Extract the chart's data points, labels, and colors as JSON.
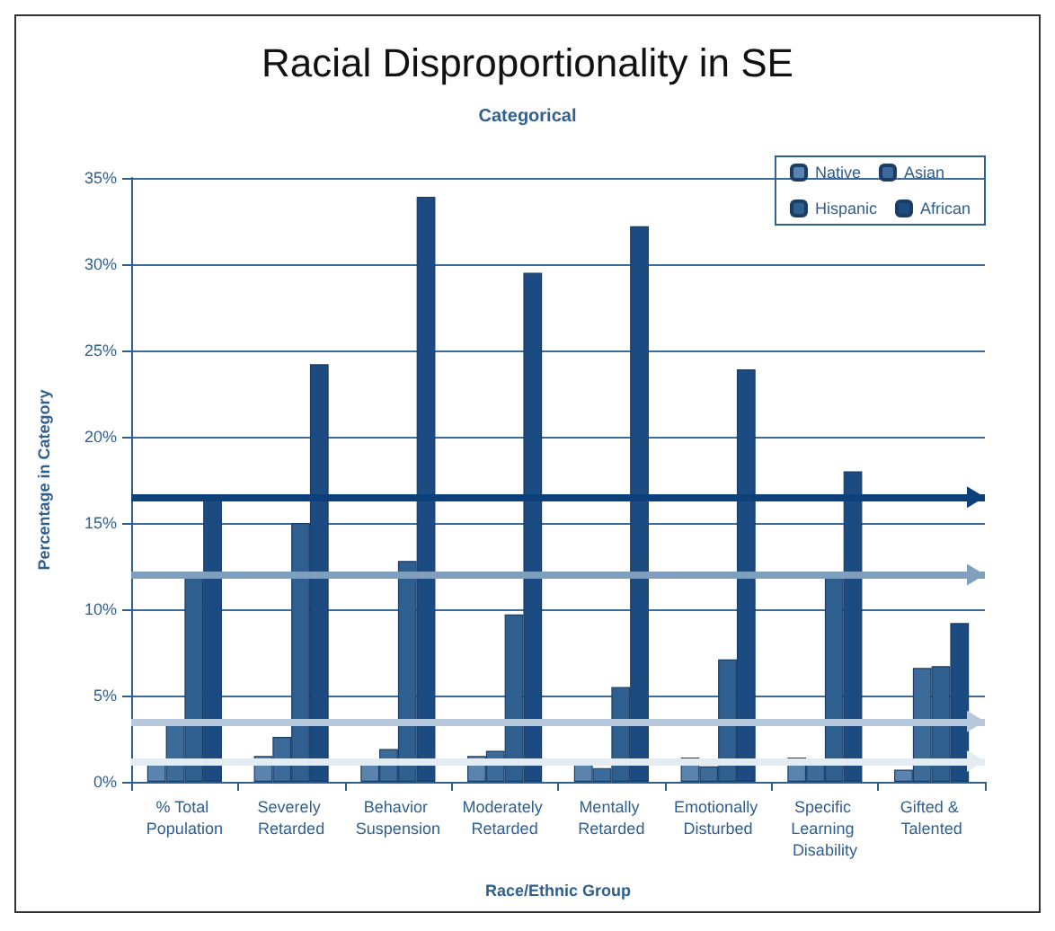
{
  "chart_data": {
    "type": "bar",
    "title": "Racial Disproportionality in SE",
    "subtitle": "Categorical",
    "xlabel": "Race/Ethnic Group",
    "ylabel": "Percentage in Category",
    "categories": [
      "% Total Population",
      "Severely Retarded",
      "Behavior Suspension",
      "Moderately Retarded",
      "Mentally Retarded",
      "Emotionally Disturbed",
      "Specific Learning Disability",
      "Gifted & Talented"
    ],
    "series": [
      {
        "name": "Native",
        "color": "#5a83ad",
        "values": [
          1.2,
          1.5,
          1.0,
          1.5,
          1.3,
          1.4,
          1.4,
          0.7
        ]
      },
      {
        "name": "Asian",
        "color": "#3d6b99",
        "values": [
          3.3,
          2.6,
          1.9,
          1.8,
          0.8,
          0.9,
          1.2,
          6.6
        ]
      },
      {
        "name": "Hispanic",
        "color": "#2f5f8f",
        "values": [
          12.0,
          15.0,
          12.8,
          9.7,
          5.5,
          7.1,
          12.0,
          6.7
        ]
      },
      {
        "name": "African",
        "color": "#1c4b82",
        "values": [
          16.5,
          24.2,
          33.9,
          29.5,
          32.2,
          23.9,
          18.0,
          9.2
        ]
      }
    ],
    "ylim": [
      0,
      35
    ],
    "yticks": [
      {
        "value": 0,
        "label": "0%"
      },
      {
        "value": 5,
        "label": "5%"
      },
      {
        "value": 10,
        "label": "10%"
      },
      {
        "value": 15,
        "label": "15%"
      },
      {
        "value": 20,
        "label": "20%"
      },
      {
        "value": 25,
        "label": "25%"
      },
      {
        "value": 30,
        "label": "30%"
      },
      {
        "value": 35,
        "label": "35%"
      }
    ],
    "ref_lines": [
      {
        "axis": "y",
        "value": 16.5,
        "color": "#0d3f7a"
      },
      {
        "axis": "y",
        "value": 12,
        "color": "#7f9fbf"
      },
      {
        "axis": "y",
        "value": 3.5,
        "color": "#b7c9dc"
      },
      {
        "axis": "y",
        "value": 1.2,
        "color": "#e3ebf3"
      }
    ],
    "grid": "y",
    "legend": "top right"
  }
}
